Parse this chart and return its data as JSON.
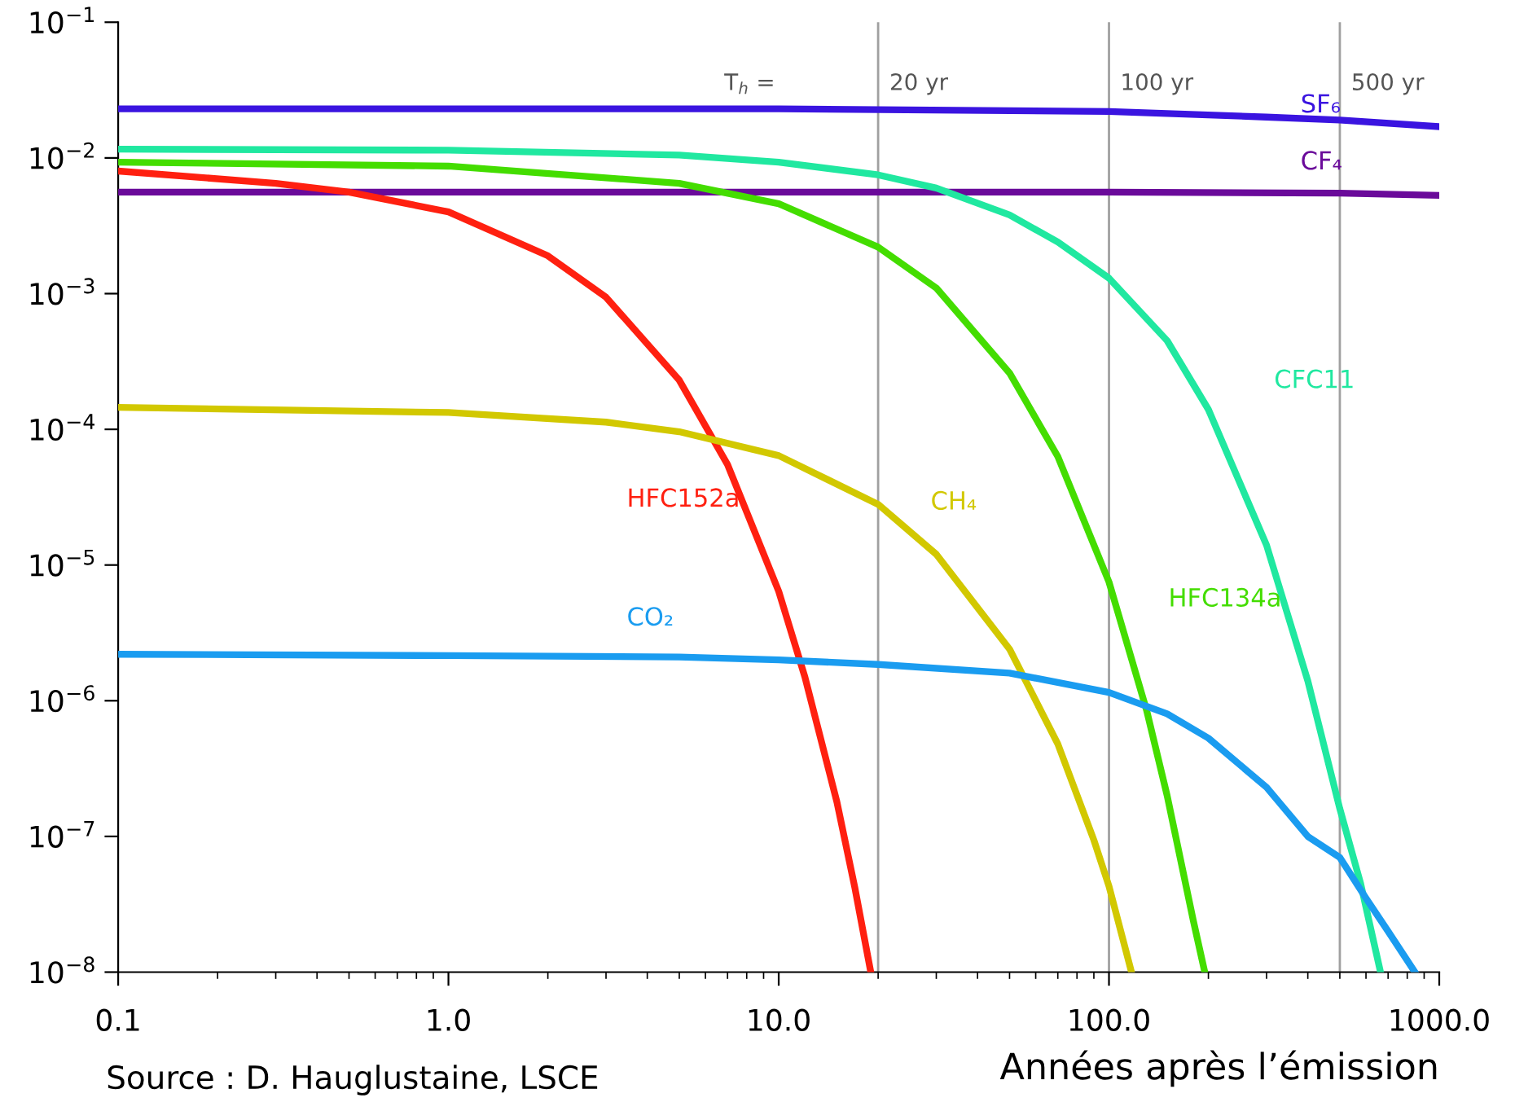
{
  "chart_data": {
    "type": "line",
    "xlabel": "Années après l’émission",
    "log": "xy",
    "xlim": [
      0.1,
      1000
    ],
    "ylim": [
      1e-08,
      0.1
    ],
    "xticks": [
      {
        "value": 0.1,
        "label": "0.1"
      },
      {
        "value": 1,
        "label": "1.0"
      },
      {
        "value": 10,
        "label": "10.0"
      },
      {
        "value": 100,
        "label": "100.0"
      },
      {
        "value": 1000,
        "label": "1000.0"
      }
    ],
    "yticks": [
      {
        "value": 1e-08,
        "label": "10$^{−8}$"
      },
      {
        "value": 1e-07,
        "label": "10$^{−7}$"
      },
      {
        "value": 1e-06,
        "label": "10$^{−6}$"
      },
      {
        "value": 1e-05,
        "label": "10$^{−5}$"
      },
      {
        "value": 0.0001,
        "label": "10$^{−4}$"
      },
      {
        "value": 0.001,
        "label": "10$^{−3}$"
      },
      {
        "value": 0.01,
        "label": "10$^{−2}$"
      },
      {
        "value": 0.1,
        "label": "10$^{−1}$"
      }
    ],
    "grid": false,
    "series": [
      {
        "name": "SF₆",
        "color": "#3a14e0",
        "x": [
          0.1,
          1,
          10,
          100,
          300,
          500,
          1000
        ],
        "values": [
          0.023,
          0.023,
          0.023,
          0.022,
          0.02,
          0.019,
          0.017
        ]
      },
      {
        "name": "CF₄",
        "color": "#6a0a9a",
        "x": [
          0.1,
          1,
          10,
          100,
          500,
          1000
        ],
        "values": [
          0.0056,
          0.0056,
          0.0056,
          0.0056,
          0.0055,
          0.0053
        ]
      },
      {
        "name": "CFC11",
        "color": "#20e8a0",
        "x": [
          0.1,
          1,
          5,
          10,
          20,
          30,
          50,
          70,
          100,
          150,
          200,
          300,
          400,
          500,
          578,
          664
        ],
        "values": [
          0.0116,
          0.0114,
          0.0105,
          0.0093,
          0.0075,
          0.006,
          0.0038,
          0.0024,
          0.0013,
          0.00045,
          0.00014,
          1.4e-05,
          1.4e-06,
          1.6e-07,
          4.5e-08,
          1e-08
        ]
      },
      {
        "name": "HFC134a",
        "color": "#44dd00",
        "x": [
          0.1,
          1,
          5,
          10,
          20,
          30,
          50,
          70,
          100,
          130,
          150,
          180,
          195
        ],
        "values": [
          0.0093,
          0.0087,
          0.0065,
          0.0046,
          0.0022,
          0.0011,
          0.00026,
          6.3e-05,
          7.5e-06,
          8.5e-07,
          2e-07,
          2.4e-08,
          1e-08
        ]
      },
      {
        "name": "HFC152a",
        "color": "#ff2010",
        "x": [
          0.1,
          0.3,
          0.5,
          1,
          2,
          3,
          5,
          7,
          10,
          12,
          15,
          17,
          19
        ],
        "values": [
          0.008,
          0.0065,
          0.0056,
          0.004,
          0.0019,
          0.00094,
          0.00023,
          5.5e-05,
          6.4e-06,
          1.5e-06,
          1.8e-07,
          4.2e-08,
          1e-08
        ]
      },
      {
        "name": "CH₄",
        "color": "#d2c800",
        "x": [
          0.1,
          1,
          3,
          5,
          10,
          20,
          30,
          50,
          70,
          90,
          100,
          117
        ],
        "values": [
          0.000145,
          0.000133,
          0.000113,
          9.6e-05,
          6.4e-05,
          2.8e-05,
          1.2e-05,
          2.4e-06,
          4.8e-07,
          9.4e-08,
          4.3e-08,
          1e-08
        ]
      },
      {
        "name": "CO₂",
        "color": "#1a9cf0",
        "x": [
          0.1,
          1,
          5,
          10,
          20,
          50,
          100,
          150,
          200,
          300,
          400,
          500,
          600,
          700,
          844
        ],
        "values": [
          2.2e-06,
          2.15e-06,
          2.1e-06,
          2e-06,
          1.85e-06,
          1.6e-06,
          1.15e-06,
          8e-07,
          5.3e-07,
          2.3e-07,
          1e-07,
          7e-08,
          3.5e-08,
          2e-08,
          1e-08
        ]
      }
    ],
    "ref_lines": [
      {
        "axis": "x",
        "value": 20,
        "label": "20 yr",
        "color": "#a0a0a0"
      },
      {
        "axis": "x",
        "value": 100,
        "label": "100 yr",
        "color": "#a0a0a0"
      },
      {
        "axis": "x",
        "value": 500,
        "label": "500 yr",
        "color": "#a0a0a0"
      }
    ],
    "annotations": [
      "T$_{h}$ =",
      "Source : D. Hauglustaine, LSCE"
    ]
  }
}
